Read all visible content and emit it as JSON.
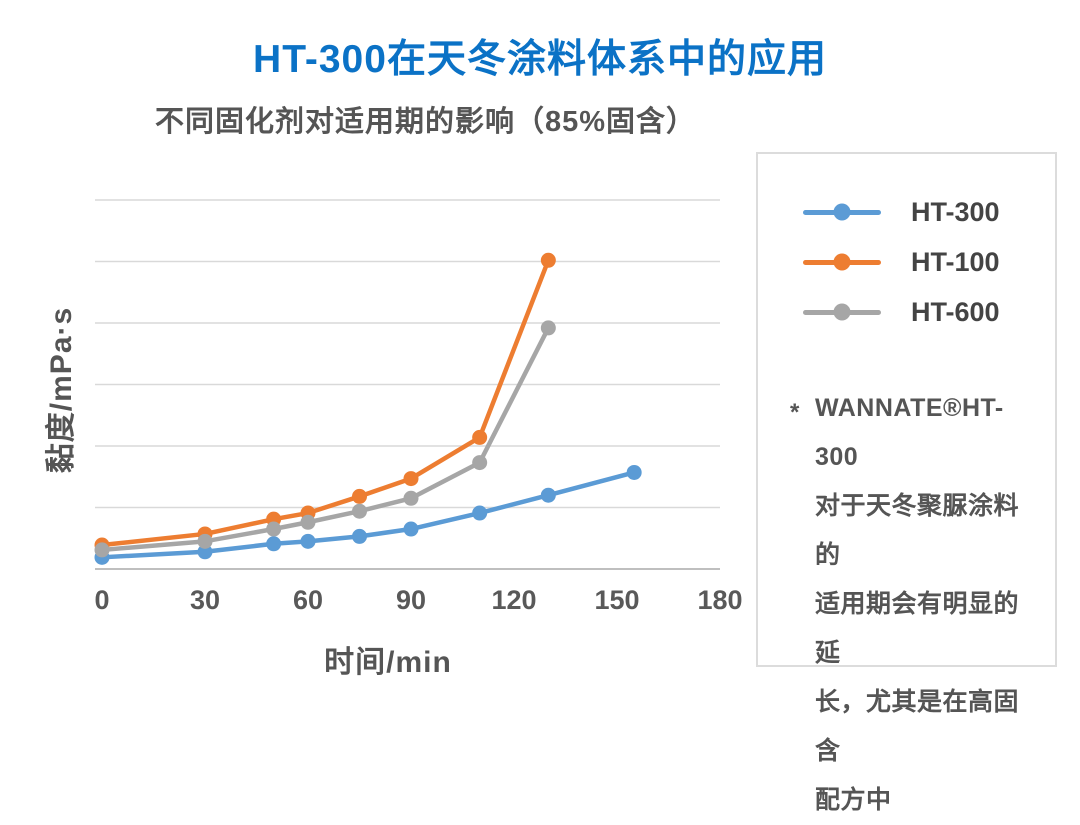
{
  "title": {
    "text": "HT-300在天冬涂料体系中的应用",
    "color": "#0b72c6"
  },
  "subtitle": {
    "text": "不同固化剂对适用期的影响（85%固含）"
  },
  "chart_data": {
    "type": "line",
    "title": "不同固化剂对适用期的影响（85%固含）",
    "xlabel": "时间/min",
    "ylabel": "黏度/mPa·s",
    "xlim": [
      0,
      180
    ],
    "x_ticks": [
      0,
      30,
      60,
      90,
      120,
      150,
      180
    ],
    "ylim": [
      0,
      6
    ],
    "y_axis_labeled": false,
    "y_unit_note": "y values in unlabeled gridline units (0 = bottom axis, 1 per horizontal gridline, 6 gridline intervals total)",
    "grid": true,
    "gridline_color": "#d9d9d9",
    "axis_line_color": "#bfbfbf",
    "legend_position": "right-box",
    "series": [
      {
        "name": "HT-300",
        "color": "#5b9bd5",
        "x": [
          0,
          30,
          50,
          60,
          75,
          90,
          110,
          130,
          155
        ],
        "y": [
          0.19,
          0.28,
          0.41,
          0.45,
          0.53,
          0.65,
          0.91,
          1.2,
          1.57
        ]
      },
      {
        "name": "HT-100",
        "color": "#ed7d31",
        "x": [
          0,
          30,
          50,
          60,
          75,
          90,
          110,
          130
        ],
        "y": [
          0.39,
          0.57,
          0.81,
          0.91,
          1.18,
          1.47,
          2.14,
          5.02
        ]
      },
      {
        "name": "HT-600",
        "color": "#a6a6a6",
        "x": [
          0,
          30,
          50,
          60,
          75,
          90,
          110,
          130
        ],
        "y": [
          0.31,
          0.45,
          0.65,
          0.76,
          0.94,
          1.15,
          1.73,
          3.92
        ]
      }
    ]
  },
  "note": {
    "marker": "*",
    "lines": [
      "WANNATE®HT-300",
      "对于天冬聚脲涂料的",
      "适用期会有明显的延",
      "长，尤其是在高固含",
      "配方中"
    ]
  }
}
